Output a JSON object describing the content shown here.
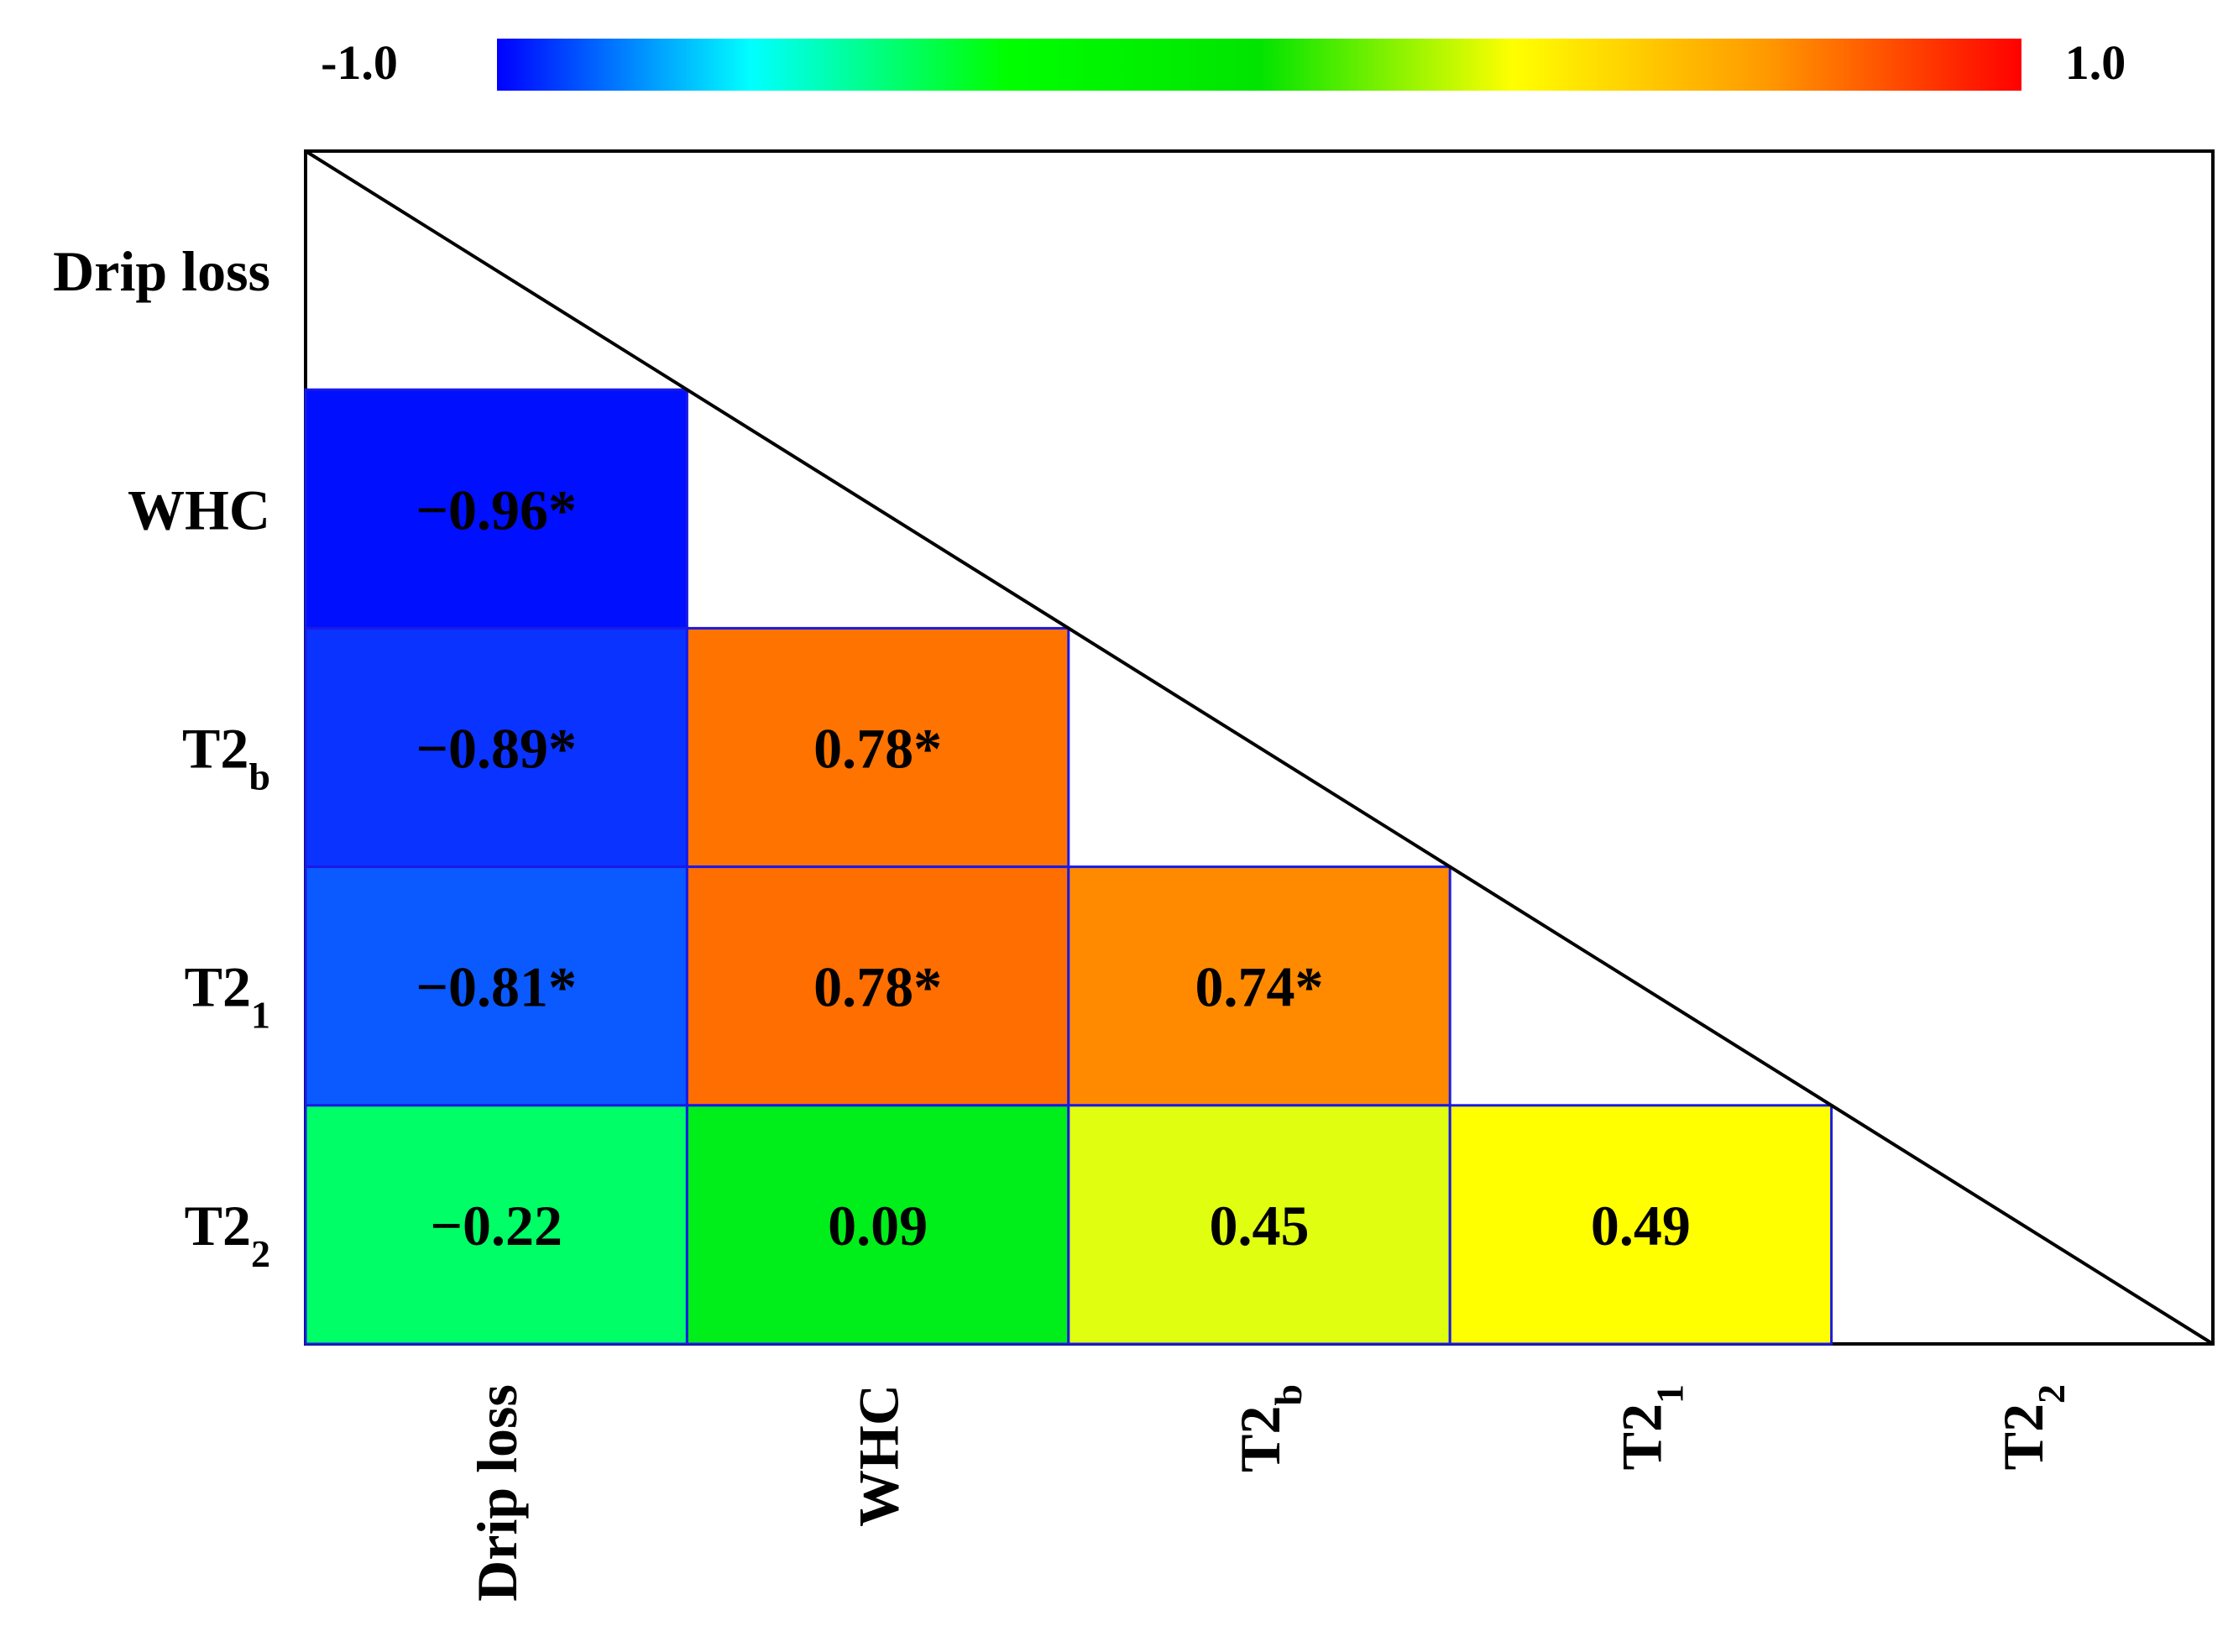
{
  "chart_data": {
    "type": "heatmap",
    "variables": [
      {
        "base": "Drip loss",
        "sub": ""
      },
      {
        "base": "WHC",
        "sub": ""
      },
      {
        "base": "T2",
        "sub": "b"
      },
      {
        "base": "T2",
        "sub": "1"
      },
      {
        "base": "T2",
        "sub": "2"
      }
    ],
    "colorbar": {
      "min": -1.0,
      "max": 1.0,
      "min_label": "-1.0",
      "max_label": "1.0",
      "colors": [
        "#0000ff",
        "#00ffff",
        "#00ff00",
        "#00e400",
        "#ffff00",
        "#ff9900",
        "#ff0000"
      ]
    },
    "cells": [
      {
        "row": 1,
        "col": 0,
        "value": -0.96,
        "label": "−0.96*",
        "color": "#0010ff"
      },
      {
        "row": 2,
        "col": 0,
        "value": -0.89,
        "label": "−0.89*",
        "color": "#0a33ff"
      },
      {
        "row": 2,
        "col": 1,
        "value": 0.78,
        "label": "0.78*",
        "color": "#ff7300"
      },
      {
        "row": 3,
        "col": 0,
        "value": -0.81,
        "label": "−0.81*",
        "color": "#0a5aff"
      },
      {
        "row": 3,
        "col": 1,
        "value": 0.78,
        "label": "0.78*",
        "color": "#ff6e00"
      },
      {
        "row": 3,
        "col": 2,
        "value": 0.74,
        "label": "0.74*",
        "color": "#ff8a00"
      },
      {
        "row": 4,
        "col": 0,
        "value": -0.22,
        "label": "−0.22",
        "color": "#00ff66"
      },
      {
        "row": 4,
        "col": 1,
        "value": 0.09,
        "label": "0.09",
        "color": "#00ee1a"
      },
      {
        "row": 4,
        "col": 2,
        "value": 0.45,
        "label": "0.45",
        "color": "#e0ff10"
      },
      {
        "row": 4,
        "col": 3,
        "value": 0.49,
        "label": "0.49",
        "color": "#ffff00"
      }
    ]
  }
}
